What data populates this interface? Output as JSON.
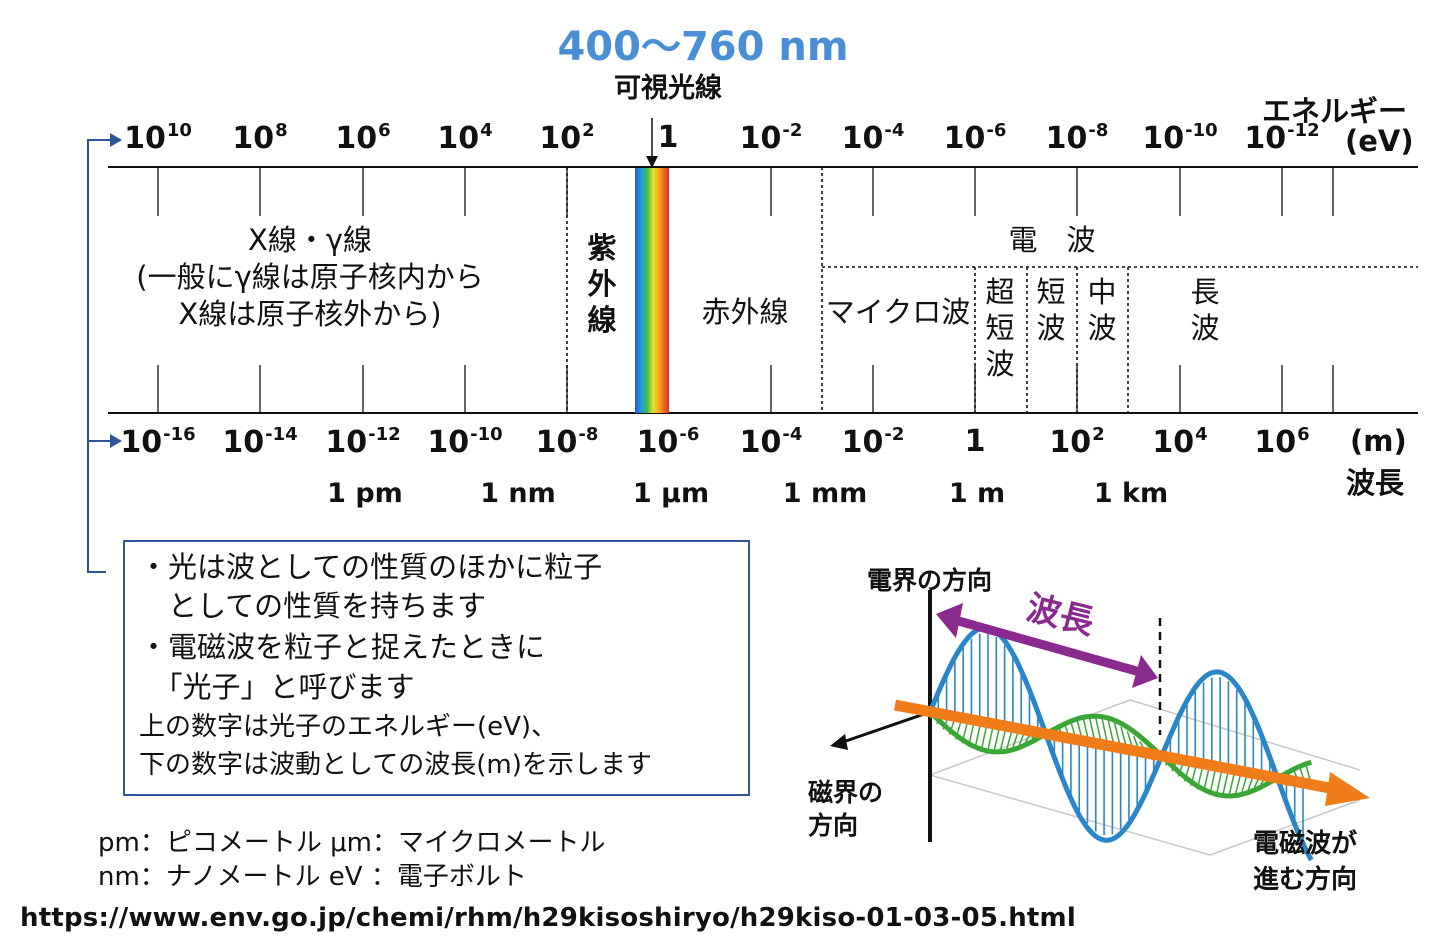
{
  "visible_range": "400〜760 nm",
  "visible_label": "可視光線",
  "energy_axis": {
    "title": "エネルギー",
    "unit": "(eV)",
    "ticks": [
      {
        "base": "10",
        "exp": "10"
      },
      {
        "base": "10",
        "exp": "8"
      },
      {
        "base": "10",
        "exp": "6"
      },
      {
        "base": "10",
        "exp": "4"
      },
      {
        "base": "10",
        "exp": "2"
      },
      {
        "base": "1",
        "exp": ""
      },
      {
        "base": "10",
        "exp": "-2"
      },
      {
        "base": "10",
        "exp": "-4"
      },
      {
        "base": "10",
        "exp": "-6"
      },
      {
        "base": "10",
        "exp": "-8"
      },
      {
        "base": "10",
        "exp": "-10"
      },
      {
        "base": "10",
        "exp": "-12"
      }
    ]
  },
  "wavelength_axis": {
    "title": "波長",
    "unit": "(m)",
    "ticks": [
      {
        "base": "10",
        "exp": "-16"
      },
      {
        "base": "10",
        "exp": "-14"
      },
      {
        "base": "10",
        "exp": "-12"
      },
      {
        "base": "10",
        "exp": "-10"
      },
      {
        "base": "10",
        "exp": "-8"
      },
      {
        "base": "10",
        "exp": "-6"
      },
      {
        "base": "10",
        "exp": "-4"
      },
      {
        "base": "10",
        "exp": "-2"
      },
      {
        "base": "1",
        "exp": ""
      },
      {
        "base": "10",
        "exp": "2"
      },
      {
        "base": "10",
        "exp": "4"
      },
      {
        "base": "10",
        "exp": "6"
      }
    ],
    "units": [
      "1 pm",
      "1 nm",
      "1 μm",
      "1 mm",
      "1 m",
      "1 km"
    ]
  },
  "regions": {
    "xray_lines": [
      "X線・γ線",
      "(一般にγ線は原子核内から",
      "X線は原子核外から)"
    ],
    "uv": "紫外線",
    "ir": "赤外線",
    "radio": "電　波",
    "microwave": "マイクロ波",
    "vhf": "超短波",
    "sw": "短波",
    "mw": "中波",
    "lw": "長波"
  },
  "notes": {
    "lines": [
      "・光は波としての性質のほかに粒子",
      "　としての性質を持ちます",
      "・電磁波を粒子と捉えたときに",
      "　「光子」と呼びます"
    ],
    "small_lines": [
      "上の数字は光子のエネルギー(eV)、",
      "下の数字は波動としての波長(m)を示します"
    ]
  },
  "legend": [
    "pm：ピコメートル  μm：マイクロメートル",
    "nm：ナノメートル  eV ：電子ボルト"
  ],
  "wave": {
    "electric_field": "電界の方向",
    "magnetic_field": [
      "磁界の",
      "方向"
    ],
    "wavelength": "波長",
    "propagation": [
      "電磁波が",
      "進む方向"
    ]
  },
  "source_url": "https://www.env.go.jp/chemi/rhm/h29kisoshiryo/h29kiso-01-03-05.html",
  "colors": {
    "accent_blue": "#4a8fd6",
    "frame_blue": "#2e5597",
    "purple": "#8a2a8f",
    "wave_blue": "#2a86c8",
    "wave_green": "#3aa635",
    "axis_orange": "#f07d1a"
  }
}
